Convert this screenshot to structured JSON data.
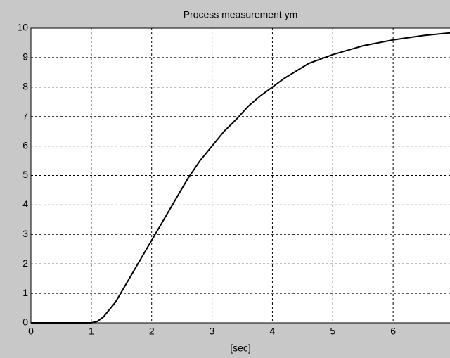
{
  "chart_data": {
    "type": "line",
    "title": "Process measurement ym",
    "xlabel": "[sec]",
    "x": [
      0,
      0.5,
      1,
      1.1,
      1.2,
      1.4,
      1.6,
      1.8,
      2,
      2.2,
      2.4,
      2.6,
      2.8,
      3,
      3.2,
      3.4,
      3.6,
      3.8,
      4,
      4.2,
      4.4,
      4.6,
      4.8,
      5,
      5.5,
      6,
      6.5,
      7
    ],
    "series": [
      {
        "name": "ym",
        "color": "#000000",
        "values": [
          0,
          0,
          0,
          0.05,
          0.2,
          0.7,
          1.4,
          2.1,
          2.8,
          3.5,
          4.2,
          4.9,
          5.5,
          6.0,
          6.5,
          6.9,
          7.35,
          7.7,
          8.0,
          8.3,
          8.55,
          8.8,
          8.95,
          9.1,
          9.4,
          9.6,
          9.75,
          9.85
        ]
      }
    ],
    "xlim": [
      0,
      7
    ],
    "xticks": [
      0,
      1,
      2,
      3,
      4,
      5,
      6
    ],
    "ylim": [
      0,
      10
    ],
    "yticks": [
      0,
      1,
      2,
      3,
      4,
      5,
      6,
      7,
      8,
      9,
      10
    ],
    "grid": true
  }
}
